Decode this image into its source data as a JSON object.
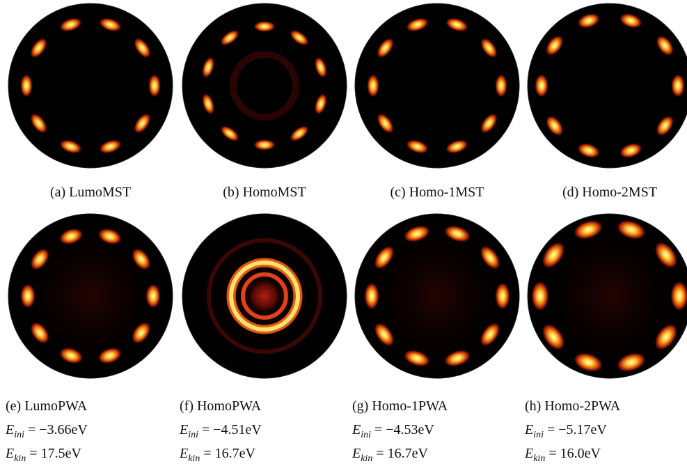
{
  "panels": [
    {
      "label": "(a) LumoMST"
    },
    {
      "label": "(b) HomoMST"
    },
    {
      "label": "(c) Homo-1MST"
    },
    {
      "label": "(d) Homo-2MST"
    },
    {
      "label": "(e) LumoPWA",
      "e_ini": {
        "symbol": "E",
        "sub": "ini",
        "rest": " = −3.66eV"
      },
      "e_kin": {
        "symbol": "E",
        "sub": "kin",
        "rest": " = 17.5eV"
      }
    },
    {
      "label": "(f) HomoPWA",
      "e_ini": {
        "symbol": "E",
        "sub": "ini",
        "rest": " = −4.51eV"
      },
      "e_kin": {
        "symbol": "E",
        "sub": "kin",
        "rest": " = 16.7eV"
      }
    },
    {
      "label": "(g) Homo-1PWA",
      "e_ini": {
        "symbol": "E",
        "sub": "ini",
        "rest": " = −4.53eV"
      },
      "e_kin": {
        "symbol": "E",
        "sub": "kin",
        "rest": " = 16.7eV"
      }
    },
    {
      "label": "(h) Homo-2PWA",
      "e_ini": {
        "symbol": "E",
        "sub": "ini",
        "rest": " = −5.17eV"
      },
      "e_kin": {
        "symbol": "E",
        "sub": "kin",
        "rest": " = 16.0eV"
      }
    }
  ]
}
